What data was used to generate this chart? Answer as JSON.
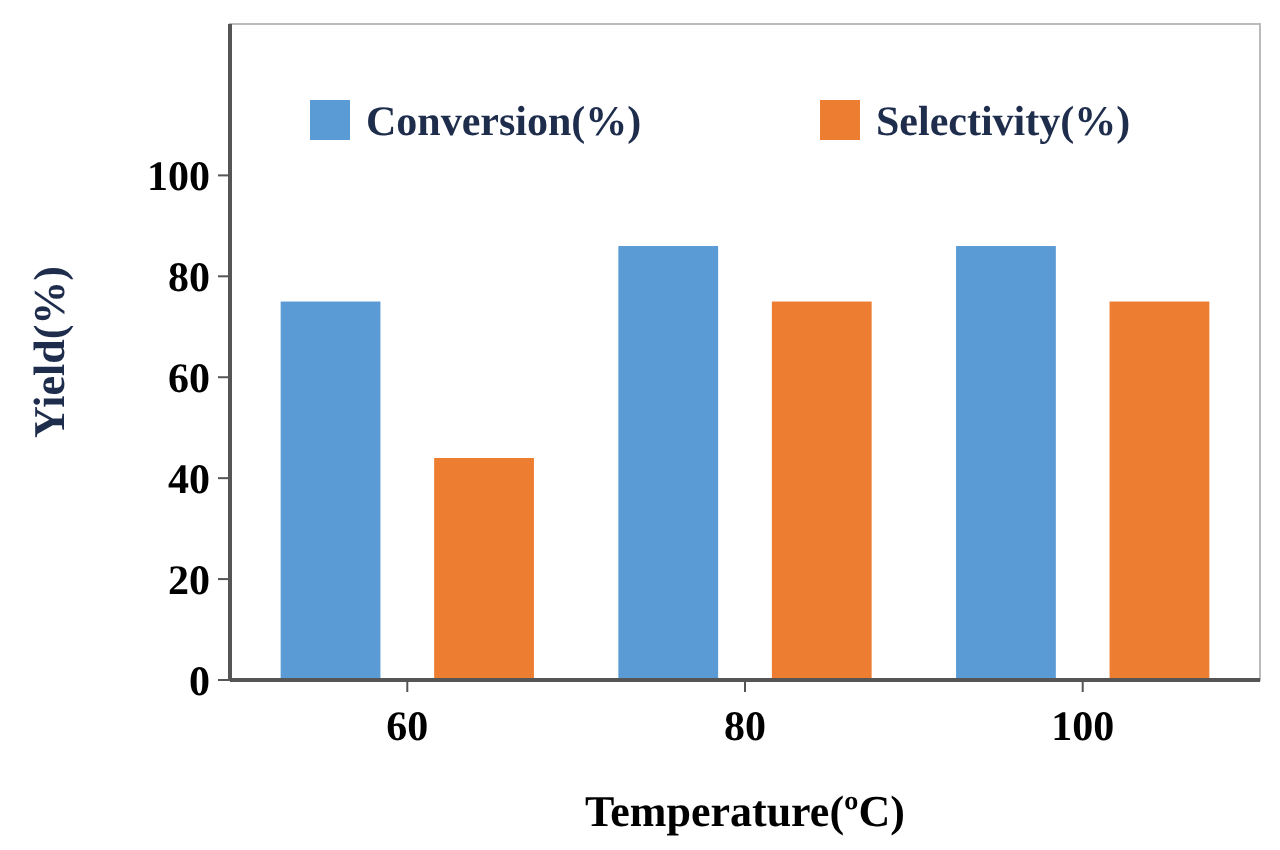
{
  "chart_data": {
    "type": "bar",
    "xlabel": "Temperature(ºC)",
    "ylabel": "Yield(%)",
    "categories": [
      "60",
      "80",
      "100"
    ],
    "series": [
      {
        "name": "Conversion(%)",
        "color": "#5b9bd5",
        "values": [
          75,
          86,
          86
        ]
      },
      {
        "name": "Selectivity(%)",
        "color": "#ed7d31",
        "values": [
          44,
          75,
          75
        ]
      }
    ],
    "ylim": [
      0,
      130
    ],
    "yticks": [
      0,
      20,
      40,
      60,
      80,
      100
    ],
    "grid": false,
    "legend": "top"
  }
}
